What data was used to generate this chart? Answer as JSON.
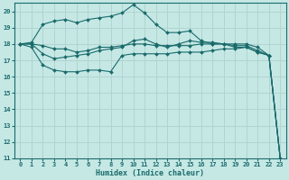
{
  "xlabel": "Humidex (Indice chaleur)",
  "xlim": [
    -0.5,
    23.5
  ],
  "ylim": [
    11,
    20.5
  ],
  "ytick_min": 11,
  "ytick_max": 20,
  "xticks": [
    0,
    1,
    2,
    3,
    4,
    5,
    6,
    7,
    8,
    9,
    10,
    11,
    12,
    13,
    14,
    15,
    16,
    17,
    18,
    19,
    20,
    21,
    22,
    23
  ],
  "yticks": [
    11,
    12,
    13,
    14,
    15,
    16,
    17,
    18,
    19,
    20
  ],
  "bg_color": "#c5e8e5",
  "grid_color": "#b0d4d0",
  "line_color": "#1a6b6b",
  "marker": "D",
  "lines": [
    [
      18.0,
      17.8,
      16.7,
      16.4,
      16.3,
      16.3,
      16.4,
      16.4,
      16.3,
      17.3,
      17.4,
      17.4,
      17.4,
      17.4,
      17.5,
      17.5,
      17.5,
      17.6,
      17.7,
      17.7,
      17.8,
      17.5,
      17.3,
      11.0
    ],
    [
      18.0,
      18.0,
      17.9,
      17.7,
      17.7,
      17.5,
      17.6,
      17.8,
      17.8,
      17.9,
      18.0,
      18.0,
      17.9,
      17.9,
      17.9,
      17.9,
      18.0,
      18.0,
      18.0,
      18.0,
      18.0,
      17.8,
      17.3,
      11.0
    ],
    [
      18.0,
      18.0,
      17.4,
      17.1,
      17.2,
      17.3,
      17.4,
      17.6,
      17.7,
      17.8,
      18.2,
      18.3,
      18.0,
      17.8,
      18.0,
      18.2,
      18.1,
      18.1,
      18.0,
      17.8,
      17.8,
      17.5,
      17.3,
      11.0
    ],
    [
      18.0,
      18.1,
      19.2,
      19.4,
      19.5,
      19.3,
      19.5,
      19.6,
      19.7,
      19.9,
      20.4,
      19.9,
      19.2,
      18.7,
      18.7,
      18.8,
      18.2,
      18.0,
      18.0,
      17.9,
      17.9,
      17.6,
      17.3,
      11.0
    ]
  ]
}
